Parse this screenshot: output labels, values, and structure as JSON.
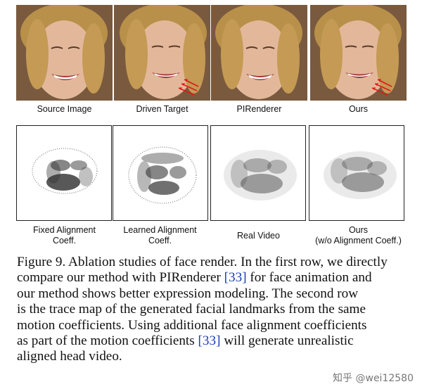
{
  "row1_captions": [
    "Source Image",
    "Driven Target",
    "PIRenderer",
    "Ours"
  ],
  "row2_captions": [
    [
      "Fixed Alignment",
      "Coeff."
    ],
    [
      "Learned Alignment",
      "Coeff."
    ],
    [
      "Real Video"
    ],
    [
      "Ours",
      "(w/o Alignment Coeff.)"
    ]
  ],
  "caption": {
    "line1": "Figure 9. Ablation studies of face render. In the first row, we directly",
    "line2a": "compare our method with PIRenderer ",
    "ref1": "[33]",
    "line2b": " for face animation and",
    "line3": "our method shows better expression modeling. The second row",
    "line4": "is the trace map of the generated facial landmarks from the same",
    "line5": "motion coefficients. Using additional face alignment coefficients",
    "line6a": "as part of the motion coefficients  ",
    "ref2": "[33]",
    "line6b": " will generate unrealistic",
    "line7": "aligned head video."
  },
  "watermark": "知乎 @wei12580",
  "colors": {
    "ref": "#1a3cb4",
    "arrow": "#e01818"
  }
}
